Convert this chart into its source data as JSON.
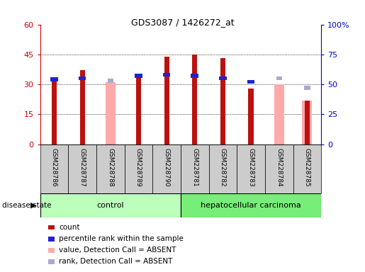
{
  "title": "GDS3087 / 1426272_at",
  "samples": [
    "GSM228786",
    "GSM228787",
    "GSM228788",
    "GSM228789",
    "GSM228790",
    "GSM228781",
    "GSM228782",
    "GSM228783",
    "GSM228784",
    "GSM228785"
  ],
  "count": [
    32,
    37,
    null,
    35,
    44,
    45,
    43,
    28,
    null,
    22
  ],
  "percentile_rank": [
    54,
    55,
    null,
    57,
    58,
    57,
    55,
    52,
    null,
    null
  ],
  "absent_value": [
    null,
    null,
    31,
    null,
    null,
    null,
    null,
    null,
    30,
    22
  ],
  "absent_rank": [
    null,
    null,
    53,
    null,
    null,
    null,
    null,
    null,
    55,
    47
  ],
  "ylim_left": [
    0,
    60
  ],
  "ylim_right": [
    0,
    100
  ],
  "yticks_left": [
    0,
    15,
    30,
    45,
    60
  ],
  "yticks_right": [
    0,
    25,
    50,
    75,
    100
  ],
  "yticklabels_right": [
    "0",
    "25",
    "50",
    "75",
    "100%"
  ],
  "count_color": "#bb1111",
  "rank_color": "#2222cc",
  "absent_value_color": "#ffaaaa",
  "absent_rank_color": "#aaaacc",
  "control_color": "#bbffbb",
  "cancer_color": "#77ee77",
  "xtick_bg": "#cccccc",
  "axis_color_left": "#cc0000",
  "axis_color_right": "#0000cc",
  "n_control": 5,
  "n_cancer": 5
}
